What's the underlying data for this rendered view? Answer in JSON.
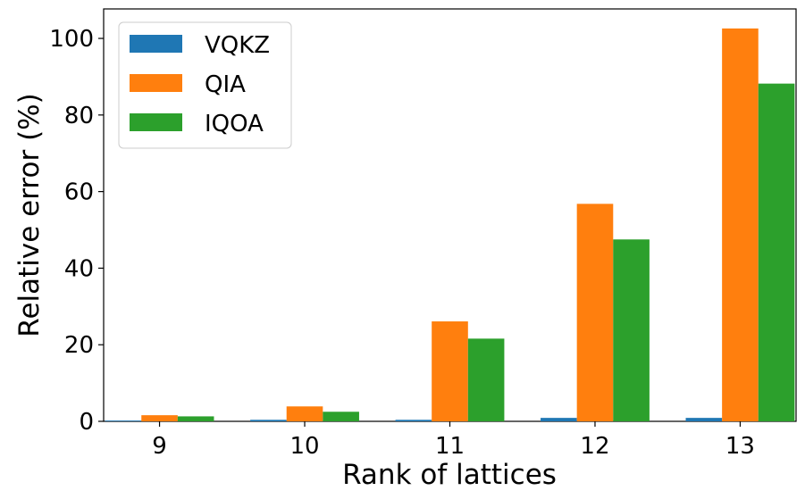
{
  "chart_data": {
    "type": "bar",
    "categories": [
      "9",
      "10",
      "11",
      "12",
      "13"
    ],
    "series": [
      {
        "name": "VQKZ",
        "color": "#1f77b4",
        "values": [
          0.2,
          0.4,
          0.4,
          0.9,
          0.9
        ]
      },
      {
        "name": "QIA",
        "color": "#ff7f0e",
        "values": [
          1.6,
          3.9,
          26.1,
          56.8,
          102.6
        ]
      },
      {
        "name": "IQOA",
        "color": "#2ca02c",
        "values": [
          1.3,
          2.5,
          21.6,
          47.5,
          88.2
        ]
      }
    ],
    "xlabel": "Rank of lattices",
    "ylabel": "Relative error (%)",
    "ylim": [
      0,
      107.7
    ],
    "yticks": [
      "0",
      "20",
      "40",
      "60",
      "80",
      "100"
    ],
    "legend_location": "top-left",
    "grid": false
  }
}
